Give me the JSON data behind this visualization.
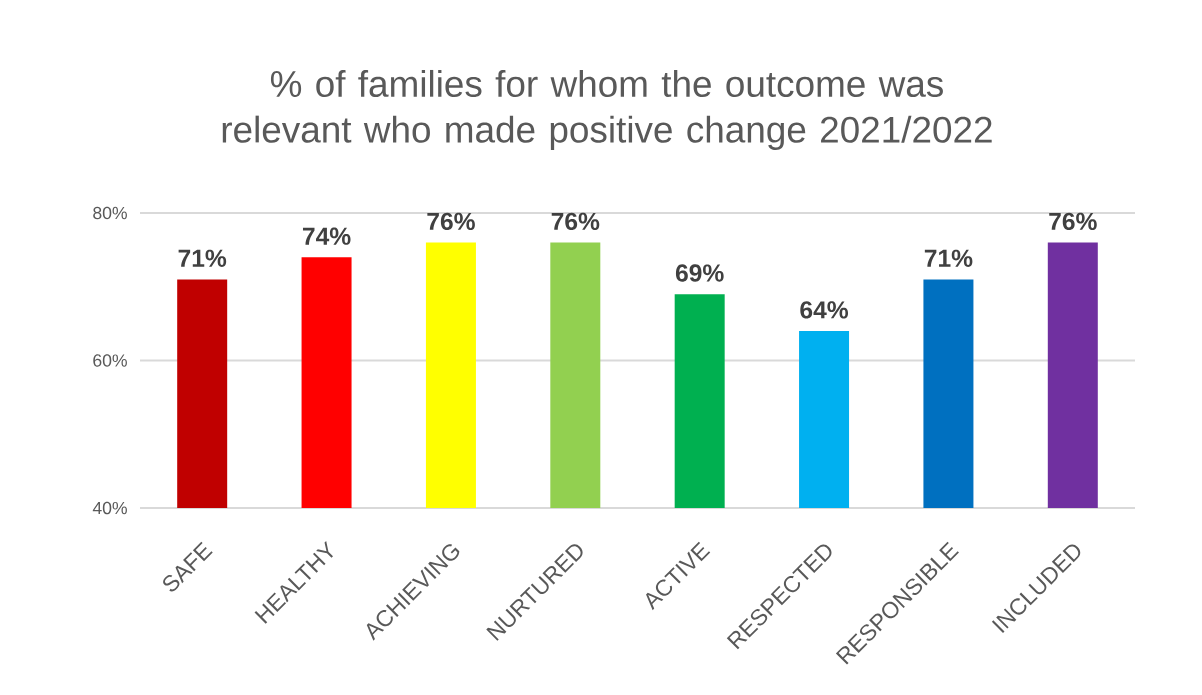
{
  "chart_data": {
    "type": "bar",
    "title": "% of families for whom the outcome was relevant who made positive change 2021/2022",
    "categories": [
      "SAFE",
      "HEALTHY",
      "ACHIEVING",
      "NURTURED",
      "ACTIVE",
      "RESPECTED",
      "RESPONSIBLE",
      "INCLUDED"
    ],
    "values": [
      71,
      74,
      76,
      76,
      69,
      64,
      71,
      76
    ],
    "value_labels": [
      "71%",
      "74%",
      "76%",
      "76%",
      "69%",
      "64%",
      "71%",
      "76%"
    ],
    "colors": [
      "#c00000",
      "#ff0000",
      "#ffff00",
      "#92d050",
      "#00b050",
      "#00b0f0",
      "#0070c0",
      "#7030a0"
    ],
    "ylim": [
      40,
      80
    ],
    "yticks": [
      {
        "value": 40,
        "label": "40%"
      },
      {
        "value": 60,
        "label": "60%"
      },
      {
        "value": 80,
        "label": "80%"
      }
    ],
    "grid": "y"
  }
}
